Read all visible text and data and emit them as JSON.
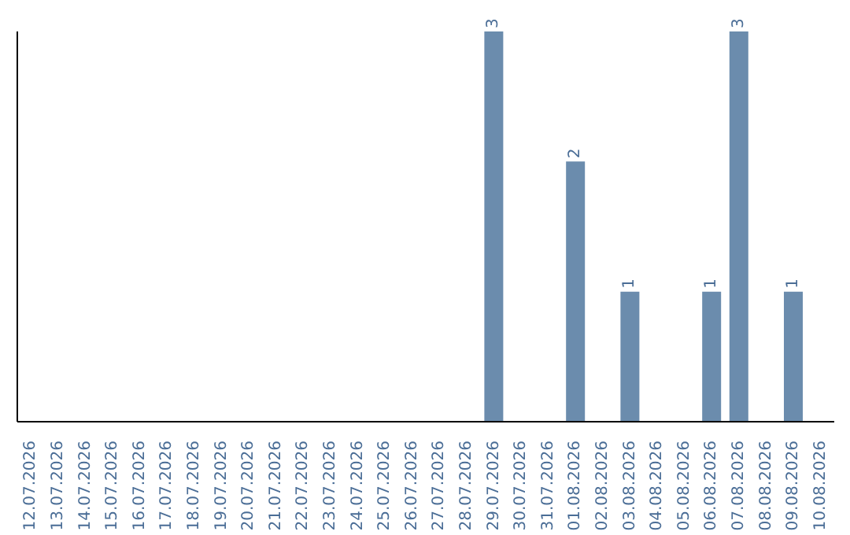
{
  "chart_data": {
    "type": "bar",
    "categories": [
      "12.07.2026",
      "13.07.2026",
      "14.07.2026",
      "15.07.2026",
      "16.07.2026",
      "17.07.2026",
      "18.07.2026",
      "19.07.2026",
      "20.07.2026",
      "21.07.2026",
      "22.07.2026",
      "23.07.2026",
      "24.07.2026",
      "25.07.2026",
      "26.07.2026",
      "27.07.2026",
      "28.07.2026",
      "29.07.2026",
      "30.07.2026",
      "31.07.2026",
      "01.08.2026",
      "02.08.2026",
      "03.08.2026",
      "04.08.2026",
      "05.08.2026",
      "06.08.2026",
      "07.08.2026",
      "08.08.2026",
      "09.08.2026",
      "10.08.2026"
    ],
    "values": [
      null,
      null,
      null,
      null,
      null,
      null,
      null,
      null,
      null,
      null,
      null,
      null,
      null,
      null,
      null,
      null,
      null,
      3,
      null,
      null,
      2,
      null,
      1,
      null,
      null,
      1,
      3,
      null,
      1,
      null
    ],
    "color": "#6b8cad",
    "data_labels": true,
    "grid": false,
    "legend": false
  }
}
